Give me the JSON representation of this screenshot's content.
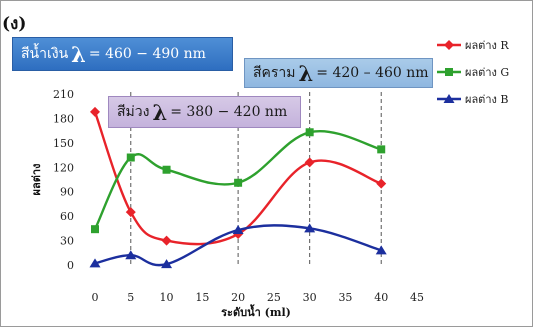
{
  "panel_label": "(ง)",
  "annotations": {
    "blue": {
      "name": "สีน้ำเงิน",
      "lambda": "λ",
      "eq": "= 460 − 490 nm"
    },
    "indigo": {
      "name": "สีคราม",
      "lambda": "λ",
      "eq": "= 420 – 460 nm"
    },
    "violet": {
      "name": "สีม่วง",
      "lambda": "λ",
      "eq": "= 380 − 420 nm"
    }
  },
  "chart_data": {
    "type": "line",
    "xlabel": "ระดับน้ำ (ml)",
    "ylabel": "ผลต่าง",
    "xlim": [
      0,
      45
    ],
    "ylim": [
      0,
      210
    ],
    "xticks": [
      0,
      5,
      10,
      15,
      20,
      25,
      30,
      35,
      40,
      45
    ],
    "yticks": [
      0,
      30,
      60,
      90,
      120,
      150,
      180,
      210
    ],
    "vlines": [
      5,
      20,
      30,
      40
    ],
    "legend_position": "right",
    "x": [
      0,
      5,
      10,
      20,
      30,
      40
    ],
    "series": [
      {
        "name": "ผลต่าง R",
        "color": "#e8232a",
        "marker": "diamond",
        "values": [
          188,
          65,
          30,
          38,
          126,
          100
        ]
      },
      {
        "name": "ผลต่าง G",
        "color": "#2ea12e",
        "marker": "square",
        "values": [
          44,
          132,
          117,
          101,
          163,
          142
        ]
      },
      {
        "name": "ผลต่าง B",
        "color": "#1c2f9e",
        "marker": "triangle",
        "values": [
          2,
          12,
          1,
          43,
          45,
          18
        ]
      }
    ]
  }
}
